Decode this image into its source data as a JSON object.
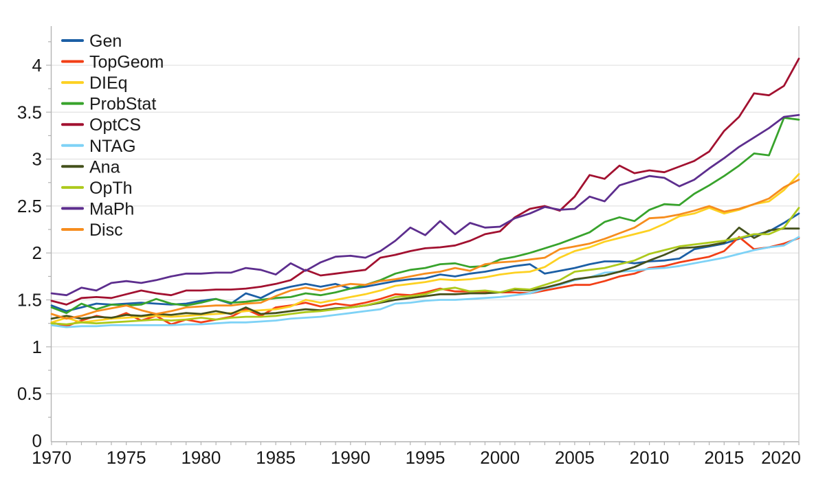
{
  "chart_data": {
    "type": "line",
    "title": "",
    "xlabel": "",
    "ylabel": "",
    "grid": "horizontal",
    "legend_position": "top-left",
    "xlim": [
      1970,
      2020
    ],
    "ylim": [
      0,
      4.42
    ],
    "x_tick_values": [
      1970,
      1975,
      1980,
      1985,
      1990,
      1995,
      2000,
      2005,
      2010,
      2015,
      2020
    ],
    "x_tick_labels": [
      "1970",
      "1975",
      "1980",
      "1985",
      "1990",
      "1995",
      "2000",
      "2005",
      "2010",
      "2015",
      "2020"
    ],
    "y_tick_values": [
      0,
      0.5,
      1,
      1.5,
      2,
      2.5,
      3,
      3.5,
      4
    ],
    "y_tick_labels": [
      "0",
      "0.5",
      "1",
      "1.5",
      "2",
      "2.5",
      "3",
      "3.5",
      "4"
    ],
    "years": [
      1970,
      1971,
      1972,
      1973,
      1974,
      1975,
      1976,
      1977,
      1978,
      1979,
      1980,
      1981,
      1982,
      1983,
      1984,
      1985,
      1986,
      1987,
      1988,
      1989,
      1990,
      1991,
      1992,
      1993,
      1994,
      1995,
      1996,
      1997,
      1998,
      1999,
      2000,
      2001,
      2002,
      2003,
      2004,
      2005,
      2006,
      2007,
      2008,
      2009,
      2010,
      2011,
      2012,
      2013,
      2014,
      2015,
      2016,
      2017,
      2018,
      2019,
      2020
    ],
    "series": [
      {
        "name": "Gen",
        "color": "#1c5fa5",
        "values": [
          1.44,
          1.38,
          1.42,
          1.46,
          1.45,
          1.46,
          1.47,
          1.46,
          1.45,
          1.46,
          1.49,
          1.51,
          1.46,
          1.57,
          1.52,
          1.6,
          1.64,
          1.67,
          1.64,
          1.67,
          1.62,
          1.64,
          1.67,
          1.7,
          1.72,
          1.73,
          1.77,
          1.75,
          1.78,
          1.8,
          1.83,
          1.86,
          1.88,
          1.78,
          1.81,
          1.84,
          1.88,
          1.91,
          1.91,
          1.89,
          1.91,
          1.92,
          1.94,
          2.04,
          2.07,
          2.1,
          2.15,
          2.19,
          2.23,
          2.32,
          2.42
        ]
      },
      {
        "name": "TopGeom",
        "color": "#f23f16",
        "values": [
          1.26,
          1.22,
          1.28,
          1.33,
          1.3,
          1.36,
          1.28,
          1.33,
          1.24,
          1.29,
          1.26,
          1.29,
          1.32,
          1.4,
          1.33,
          1.42,
          1.44,
          1.47,
          1.43,
          1.46,
          1.44,
          1.47,
          1.51,
          1.56,
          1.55,
          1.58,
          1.62,
          1.59,
          1.59,
          1.59,
          1.58,
          1.58,
          1.57,
          1.6,
          1.63,
          1.66,
          1.66,
          1.7,
          1.75,
          1.78,
          1.84,
          1.86,
          1.9,
          1.93,
          1.96,
          2.02,
          2.17,
          2.04,
          2.06,
          2.1,
          2.16
        ]
      },
      {
        "name": "DIEq",
        "color": "#fdd122",
        "values": [
          1.26,
          1.31,
          1.26,
          1.28,
          1.3,
          1.31,
          1.32,
          1.33,
          1.32,
          1.33,
          1.34,
          1.35,
          1.36,
          1.38,
          1.39,
          1.4,
          1.43,
          1.5,
          1.47,
          1.5,
          1.53,
          1.56,
          1.6,
          1.65,
          1.67,
          1.69,
          1.72,
          1.71,
          1.72,
          1.74,
          1.77,
          1.79,
          1.8,
          1.85,
          1.95,
          2.02,
          2.06,
          2.12,
          2.16,
          2.2,
          2.24,
          2.31,
          2.39,
          2.42,
          2.48,
          2.42,
          2.46,
          2.52,
          2.55,
          2.67,
          2.84
        ]
      },
      {
        "name": "ProbStat",
        "color": "#38a32c",
        "values": [
          1.42,
          1.36,
          1.46,
          1.4,
          1.45,
          1.44,
          1.45,
          1.51,
          1.46,
          1.44,
          1.47,
          1.51,
          1.47,
          1.48,
          1.5,
          1.52,
          1.53,
          1.57,
          1.55,
          1.58,
          1.62,
          1.66,
          1.71,
          1.78,
          1.82,
          1.84,
          1.88,
          1.89,
          1.85,
          1.86,
          1.93,
          1.96,
          2.0,
          2.05,
          2.1,
          2.16,
          2.22,
          2.33,
          2.38,
          2.34,
          2.46,
          2.52,
          2.51,
          2.63,
          2.72,
          2.82,
          2.93,
          3.06,
          3.04,
          3.44,
          3.42
        ]
      },
      {
        "name": "OptCS",
        "color": "#a21130",
        "values": [
          1.49,
          1.45,
          1.52,
          1.53,
          1.52,
          1.56,
          1.6,
          1.57,
          1.55,
          1.6,
          1.6,
          1.61,
          1.61,
          1.62,
          1.64,
          1.67,
          1.71,
          1.82,
          1.76,
          1.78,
          1.8,
          1.82,
          1.95,
          1.98,
          2.02,
          2.05,
          2.06,
          2.08,
          2.13,
          2.2,
          2.23,
          2.38,
          2.47,
          2.5,
          2.45,
          2.6,
          2.83,
          2.79,
          2.93,
          2.85,
          2.88,
          2.86,
          2.92,
          2.98,
          3.08,
          3.3,
          3.45,
          3.7,
          3.68,
          3.78,
          4.07
        ]
      },
      {
        "name": "NTAG",
        "color": "#7ed2f6",
        "values": [
          1.23,
          1.21,
          1.22,
          1.22,
          1.23,
          1.23,
          1.23,
          1.23,
          1.23,
          1.24,
          1.24,
          1.25,
          1.26,
          1.26,
          1.27,
          1.28,
          1.3,
          1.31,
          1.32,
          1.34,
          1.36,
          1.38,
          1.4,
          1.46,
          1.47,
          1.49,
          1.5,
          1.5,
          1.51,
          1.52,
          1.53,
          1.55,
          1.57,
          1.62,
          1.66,
          1.71,
          1.74,
          1.79,
          1.8,
          1.81,
          1.83,
          1.84,
          1.86,
          1.89,
          1.92,
          1.95,
          1.99,
          2.03,
          2.06,
          2.08,
          2.17
        ]
      },
      {
        "name": "Ana",
        "color": "#44511c",
        "values": [
          1.3,
          1.33,
          1.3,
          1.32,
          1.31,
          1.34,
          1.33,
          1.35,
          1.34,
          1.36,
          1.35,
          1.38,
          1.35,
          1.42,
          1.35,
          1.36,
          1.38,
          1.4,
          1.39,
          1.41,
          1.42,
          1.44,
          1.47,
          1.5,
          1.52,
          1.54,
          1.56,
          1.56,
          1.57,
          1.57,
          1.58,
          1.61,
          1.6,
          1.63,
          1.67,
          1.72,
          1.74,
          1.76,
          1.8,
          1.85,
          1.92,
          1.98,
          2.05,
          2.06,
          2.08,
          2.11,
          2.27,
          2.16,
          2.24,
          2.26,
          2.26
        ]
      },
      {
        "name": "OpTh",
        "color": "#adc91c",
        "values": [
          1.25,
          1.24,
          1.26,
          1.25,
          1.26,
          1.27,
          1.28,
          1.29,
          1.28,
          1.29,
          1.31,
          1.29,
          1.31,
          1.32,
          1.32,
          1.33,
          1.35,
          1.37,
          1.38,
          1.4,
          1.42,
          1.44,
          1.48,
          1.53,
          1.54,
          1.56,
          1.61,
          1.63,
          1.59,
          1.6,
          1.58,
          1.62,
          1.61,
          1.66,
          1.71,
          1.8,
          1.82,
          1.84,
          1.88,
          1.92,
          1.99,
          2.03,
          2.07,
          2.09,
          2.11,
          2.13,
          2.16,
          2.2,
          2.2,
          2.27,
          2.48
        ]
      },
      {
        "name": "MaPh",
        "color": "#5d2e8e",
        "values": [
          1.57,
          1.55,
          1.63,
          1.6,
          1.68,
          1.7,
          1.68,
          1.71,
          1.75,
          1.78,
          1.78,
          1.79,
          1.79,
          1.84,
          1.82,
          1.77,
          1.89,
          1.81,
          1.9,
          1.96,
          1.97,
          1.95,
          2.02,
          2.13,
          2.27,
          2.19,
          2.34,
          2.2,
          2.32,
          2.27,
          2.28,
          2.37,
          2.42,
          2.49,
          2.46,
          2.47,
          2.6,
          2.55,
          2.72,
          2.77,
          2.82,
          2.8,
          2.71,
          2.78,
          2.9,
          3.01,
          3.13,
          3.23,
          3.33,
          3.45,
          3.47
        ]
      },
      {
        "name": "Disc",
        "color": "#f68d1e",
        "values": [
          1.35,
          1.3,
          1.33,
          1.38,
          1.41,
          1.44,
          1.39,
          1.35,
          1.38,
          1.42,
          1.43,
          1.44,
          1.44,
          1.46,
          1.47,
          1.54,
          1.6,
          1.63,
          1.6,
          1.64,
          1.67,
          1.66,
          1.7,
          1.72,
          1.75,
          1.78,
          1.8,
          1.84,
          1.81,
          1.88,
          1.9,
          1.91,
          1.93,
          1.95,
          2.04,
          2.07,
          2.1,
          2.15,
          2.21,
          2.27,
          2.37,
          2.38,
          2.41,
          2.45,
          2.5,
          2.44,
          2.47,
          2.52,
          2.58,
          2.7,
          2.78
        ]
      }
    ]
  },
  "colors": {
    "background": "#ffffff",
    "grid": "#dcdcdc",
    "axis": "#b3b3b3",
    "tick_text": "#1a1a1a"
  }
}
